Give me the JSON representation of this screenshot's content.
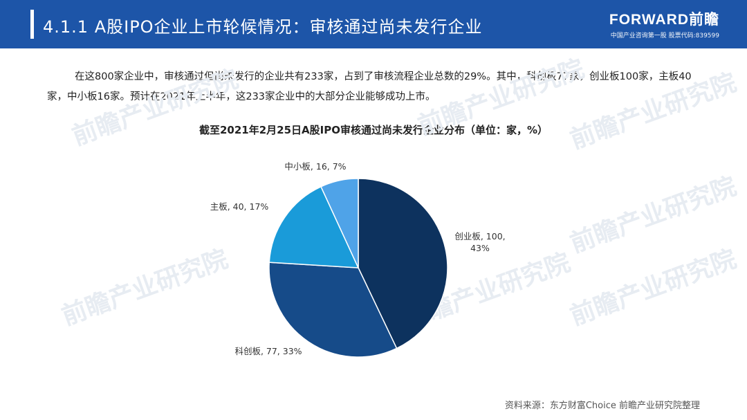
{
  "header": {
    "title": "4.1.1 A股IPO企业上市轮候情况：审核通过尚未发行企业",
    "brand_logo": "FORWARD前瞻",
    "brand_sub": "中国产业咨询第一股  股票代码:839599"
  },
  "intro": "在这800家企业中，审核通过但尚未发行的企业共有233家，占到了审核流程企业总数的29%。其中，科创板77家，创业板100家，主板40家，中小板16家。预计在2021年上半年，这233家企业中的大部分企业能够成功上市。",
  "watermark": "前瞻产业研究院",
  "source": "资料来源：东方财富Choice 前瞻产业研究院整理",
  "chart_data": {
    "type": "pie",
    "title": "截至2021年2月25日A股IPO审核通过尚未发行企业分布（单位：家，%）",
    "categories": [
      "创业板",
      "科创板",
      "主板",
      "中小板"
    ],
    "values": [
      100,
      77,
      40,
      16
    ],
    "percents": [
      43,
      33,
      17,
      7
    ],
    "labels": [
      "创业板, 100, 43%",
      "科创板, 77, 33%",
      "主板, 40, 17%",
      "中小板, 16, 7%"
    ],
    "colors": [
      "#0d325e",
      "#164b89",
      "#1a9bd9",
      "#4fa3e8"
    ],
    "start": "12 o'clock",
    "direction": "clockwise"
  }
}
